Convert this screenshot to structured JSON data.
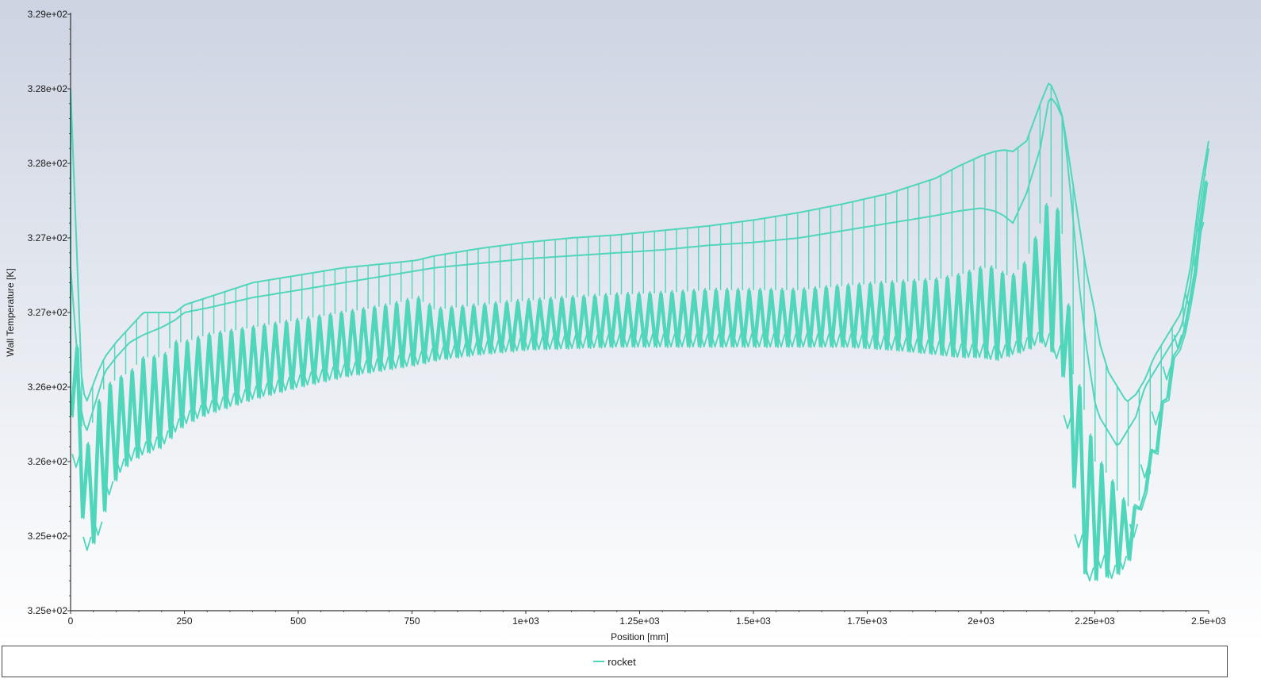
{
  "colors": {
    "series": "#4fd6bb",
    "bg_top": "#cdd4e2",
    "bg_bottom": "#ffffff",
    "axis": "#333333"
  },
  "chart_data": {
    "type": "line",
    "title": "",
    "xlabel": "Position [mm]",
    "ylabel": "Wall Temperature [K]",
    "xlim": [
      0,
      2500
    ],
    "ylim": [
      325.0,
      329.0
    ],
    "grid": false,
    "legend_position": "bottom",
    "x_ticks": [
      {
        "value": 0,
        "label": "0"
      },
      {
        "value": 250,
        "label": "250"
      },
      {
        "value": 500,
        "label": "500"
      },
      {
        "value": 750,
        "label": "750"
      },
      {
        "value": 1000,
        "label": "1e+03"
      },
      {
        "value": 1250,
        "label": "1.25e+03"
      },
      {
        "value": 1500,
        "label": "1.5e+03"
      },
      {
        "value": 1750,
        "label": "1.75e+03"
      },
      {
        "value": 2000,
        "label": "2e+03"
      },
      {
        "value": 2250,
        "label": "2.25e+03"
      },
      {
        "value": 2500,
        "label": "2.5e+03"
      }
    ],
    "y_ticks": [
      {
        "value": 325.0,
        "label": "3.25e+02"
      },
      {
        "value": 325.5,
        "label": "3.25e+02"
      },
      {
        "value": 326.0,
        "label": "3.26e+02"
      },
      {
        "value": 326.5,
        "label": "3.26e+02"
      },
      {
        "value": 327.0,
        "label": "3.27e+02"
      },
      {
        "value": 327.5,
        "label": "3.27e+02"
      },
      {
        "value": 328.0,
        "label": "3.28e+02"
      },
      {
        "value": 328.5,
        "label": "3.28e+02"
      },
      {
        "value": 329.0,
        "label": "3.29e+02"
      }
    ],
    "series": [
      {
        "name": "rocket",
        "envelope": {
          "x": [
            0,
            25,
            35,
            60,
            75,
            100,
            130,
            160,
            200,
            230,
            250,
            300,
            400,
            500,
            600,
            700,
            760,
            800,
            900,
            1000,
            1100,
            1200,
            1300,
            1400,
            1500,
            1600,
            1700,
            1800,
            1900,
            1950,
            2000,
            2030,
            2050,
            2070,
            2100,
            2130,
            2150,
            2165,
            2180,
            2200,
            2215,
            2230,
            2250,
            2260,
            2280,
            2300,
            2320,
            2340,
            2360,
            2380,
            2400,
            2420,
            2440,
            2460,
            2480,
            2500
          ],
          "outer_top": [
            328.5,
            326.5,
            326.4,
            326.6,
            326.7,
            326.8,
            326.9,
            327.0,
            327.0,
            327.0,
            327.05,
            327.1,
            327.2,
            327.25,
            327.3,
            327.33,
            327.35,
            327.38,
            327.43,
            327.47,
            327.5,
            327.52,
            327.55,
            327.58,
            327.62,
            327.67,
            327.73,
            327.8,
            327.9,
            327.98,
            328.05,
            328.08,
            328.09,
            328.08,
            328.15,
            328.4,
            328.55,
            328.45,
            328.3,
            327.9,
            327.6,
            327.3,
            327.0,
            326.8,
            326.6,
            326.5,
            326.4,
            326.45,
            326.55,
            326.7,
            326.8,
            326.9,
            327.0,
            327.3,
            327.8,
            328.15
          ],
          "inner_top": [
            327.3,
            326.3,
            326.2,
            326.45,
            326.6,
            326.7,
            326.8,
            326.85,
            326.9,
            326.95,
            327.0,
            327.03,
            327.1,
            327.15,
            327.2,
            327.25,
            327.28,
            327.3,
            327.33,
            327.36,
            327.38,
            327.4,
            327.42,
            327.45,
            327.47,
            327.5,
            327.55,
            327.6,
            327.65,
            327.68,
            327.7,
            327.68,
            327.65,
            327.6,
            327.8,
            328.1,
            328.45,
            328.4,
            328.3,
            327.7,
            327.2,
            326.8,
            326.4,
            326.3,
            326.2,
            326.1,
            326.2,
            326.3,
            326.5,
            326.6,
            326.7,
            326.8,
            326.9,
            327.2,
            327.7,
            328.1
          ],
          "upper_zig": [
            327.3,
            326.2,
            326.1,
            326.4,
            326.5,
            326.55,
            326.6,
            326.7,
            326.7,
            326.8,
            326.8,
            326.85,
            326.9,
            326.95,
            327.0,
            327.05,
            327.1,
            327.02,
            327.05,
            327.08,
            327.1,
            327.12,
            327.13,
            327.15,
            327.15,
            327.15,
            327.18,
            327.2,
            327.22,
            327.25,
            327.3,
            327.3,
            327.25,
            327.25,
            327.35,
            327.6,
            327.8,
            327.7,
            327.5,
            326.6,
            326.5,
            326.3,
            326.0,
            326.0,
            325.9,
            325.8,
            325.7,
            325.7,
            325.8,
            326.0,
            326.3,
            326.6,
            326.85,
            327.1,
            327.6,
            328.1
          ],
          "lower_zig": [
            326.3,
            325.6,
            325.4,
            325.5,
            325.7,
            325.9,
            326.0,
            326.05,
            326.1,
            326.2,
            326.25,
            326.32,
            326.42,
            326.5,
            326.57,
            326.62,
            326.65,
            326.68,
            326.72,
            326.75,
            326.76,
            326.77,
            326.77,
            326.77,
            326.77,
            326.77,
            326.77,
            326.75,
            326.72,
            326.7,
            326.7,
            326.68,
            326.7,
            326.72,
            326.75,
            326.8,
            326.75,
            326.7,
            326.55,
            325.9,
            325.4,
            325.2,
            325.2,
            325.3,
            325.2,
            325.25,
            325.3,
            325.55,
            325.9,
            326.2,
            326.45,
            326.7,
            326.8,
            327.1,
            327.5,
            328.1
          ]
        }
      }
    ]
  },
  "legend": {
    "items": [
      {
        "label": "rocket"
      }
    ]
  }
}
